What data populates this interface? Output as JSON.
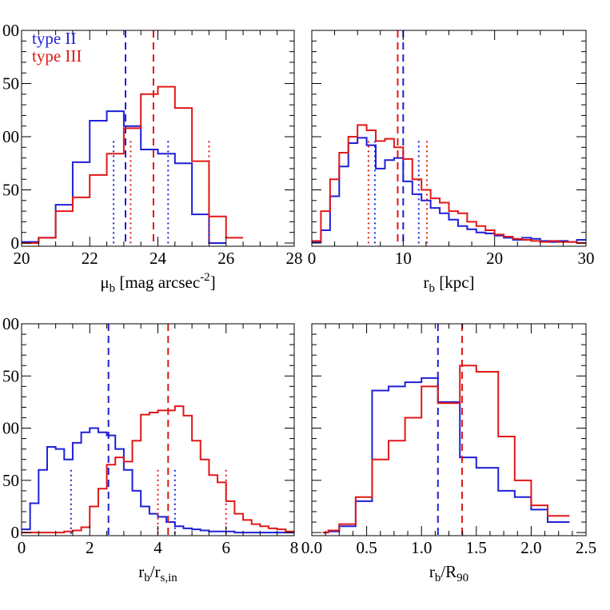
{
  "figure": {
    "colors": {
      "type_II": "#1f1fd6",
      "type_III": "#e01818",
      "axis": "#000000"
    }
  },
  "chart_data": [
    {
      "type": "histogram",
      "panel": "top-left",
      "xlabel_main": "μ",
      "xlabel_sub": "b",
      "xlabel_rest": " [mag arcsec",
      "xlabel_sup": "-2",
      "xlabel_end": "]",
      "xlim": [
        20,
        28
      ],
      "ylim": [
        -3,
        200
      ],
      "xticks": [
        "20",
        "22",
        "24",
        "26",
        "28"
      ],
      "yticks": [
        "0",
        "50",
        "100",
        "150",
        "200"
      ],
      "yticks_visible": [
        "0",
        "50",
        "00",
        "50",
        "00"
      ],
      "legend": {
        "placement": "top-left",
        "entries": [
          "type II",
          "type III"
        ]
      },
      "series": [
        {
          "name": "type II",
          "color": "#1f1fd6",
          "edges": [
            20,
            20.5,
            21,
            21.5,
            22,
            22.5,
            23,
            23.5,
            24,
            24.5,
            25,
            25.5,
            26
          ],
          "counts": [
            1,
            5,
            36,
            76,
            115,
            124,
            110,
            88,
            84,
            75,
            27,
            0
          ],
          "median": 23.05,
          "quartiles": [
            22.7,
            24.3
          ],
          "marker_top": 96
        },
        {
          "name": "type III",
          "color": "#e01818",
          "edges": [
            20,
            20.5,
            21,
            21.5,
            22,
            22.5,
            23,
            23.5,
            24,
            24.5,
            25,
            25.5,
            26,
            26.5
          ],
          "counts": [
            0,
            5,
            30,
            43,
            64,
            84,
            108,
            140,
            147,
            127,
            77,
            25,
            5
          ],
          "median": 23.87,
          "quartiles": [
            23.2,
            25.5
          ],
          "marker_top": 96
        }
      ]
    },
    {
      "type": "histogram",
      "panel": "top-right",
      "xlabel_main": "r",
      "xlabel_sub": "b",
      "xlabel_rest": " [kpc]",
      "xlabel_sup": "",
      "xlabel_end": "",
      "xlim": [
        0,
        30
      ],
      "ylim": [
        -3,
        200
      ],
      "xticks": [
        "0",
        "10",
        "20",
        "30"
      ],
      "yticks": [],
      "series": [
        {
          "name": "type II",
          "color": "#1f1fd6",
          "edges": [
            0,
            1,
            2,
            3,
            4,
            5,
            6,
            7,
            8,
            9,
            10,
            11,
            12,
            13,
            14,
            15,
            16,
            17,
            18,
            19,
            20,
            21,
            22,
            23,
            24,
            25,
            26,
            27,
            28,
            29,
            30
          ],
          "counts": [
            1,
            12,
            44,
            72,
            94,
            99,
            92,
            70,
            78,
            80,
            58,
            46,
            40,
            33,
            28,
            22,
            16,
            13,
            10,
            9,
            7,
            5,
            3,
            5,
            4,
            2,
            1,
            2,
            1,
            3
          ],
          "median": 10.0,
          "quartiles": [
            6.9,
            11.7
          ],
          "marker_top": 96
        },
        {
          "name": "type III",
          "color": "#e01818",
          "edges": [
            0,
            1,
            2,
            3,
            4,
            5,
            6,
            7,
            8,
            9,
            10,
            11,
            12,
            13,
            14,
            15,
            16,
            17,
            18,
            19,
            20,
            21,
            22,
            23,
            24,
            25,
            26,
            27,
            28,
            29,
            30
          ],
          "counts": [
            2,
            30,
            60,
            85,
            100,
            111,
            106,
            96,
            98,
            90,
            79,
            60,
            50,
            42,
            38,
            30,
            28,
            20,
            16,
            12,
            8,
            6,
            4,
            3,
            2,
            1,
            2,
            1,
            1,
            0
          ],
          "median": 9.4,
          "quartiles": [
            6.2,
            12.6
          ],
          "marker_top": 96
        }
      ]
    },
    {
      "type": "histogram",
      "panel": "bottom-left",
      "xlabel_main": "r",
      "xlabel_sub": "b",
      "xlabel_rest": "/r",
      "xlabel_sup": "",
      "xlabel_sub2": "s,in",
      "xlabel_end": "",
      "xlim": [
        0,
        8
      ],
      "ylim": [
        -3,
        200
      ],
      "xticks": [
        "0",
        "2",
        "4",
        "6",
        "8"
      ],
      "yticks": [
        "0",
        "50",
        "100",
        "150",
        "200"
      ],
      "yticks_visible": [
        "0",
        "50",
        "00",
        "50",
        "00"
      ],
      "series": [
        {
          "name": "type II",
          "color": "#1f1fd6",
          "edges": [
            0,
            0.25,
            0.5,
            0.75,
            1,
            1.25,
            1.5,
            1.75,
            2,
            2.25,
            2.5,
            2.75,
            3,
            3.25,
            3.5,
            3.75,
            4,
            4.25,
            4.5,
            4.75,
            5,
            5.25,
            5.5,
            5.75,
            6,
            6.25,
            6.5,
            6.75,
            7,
            7.25,
            7.5,
            7.75,
            8
          ],
          "counts": [
            3,
            28,
            60,
            82,
            80,
            70,
            86,
            96,
            100,
            96,
            93,
            80,
            60,
            40,
            25,
            18,
            15,
            10,
            6,
            4,
            3,
            2,
            1,
            1,
            1,
            0,
            0,
            0,
            0,
            0,
            0,
            0
          ],
          "median": 2.55,
          "quartiles": [
            1.45,
            4.5
          ],
          "marker_top": 60
        },
        {
          "name": "type III",
          "color": "#e01818",
          "edges": [
            0,
            0.25,
            0.5,
            0.75,
            1,
            1.25,
            1.5,
            1.75,
            2,
            2.25,
            2.5,
            2.75,
            3,
            3.25,
            3.5,
            3.75,
            4,
            4.25,
            4.5,
            4.75,
            5,
            5.25,
            5.5,
            5.75,
            6,
            6.25,
            6.5,
            6.75,
            7,
            7.25,
            7.5,
            7.75,
            8
          ],
          "counts": [
            0,
            0,
            0,
            0,
            0,
            1,
            2,
            5,
            25,
            42,
            65,
            72,
            68,
            88,
            113,
            115,
            117,
            117,
            121,
            112,
            88,
            70,
            55,
            48,
            30,
            18,
            12,
            8,
            6,
            4,
            3,
            1
          ],
          "median": 4.3,
          "quartiles": [
            4.0,
            6.0
          ],
          "marker_top": 60
        }
      ]
    },
    {
      "type": "histogram",
      "panel": "bottom-right",
      "xlabel_main": "r",
      "xlabel_sub": "b",
      "xlabel_rest": "/R",
      "xlabel_sup": "",
      "xlabel_sub2": "90",
      "xlabel_end": "",
      "xlim": [
        0,
        2.5
      ],
      "ylim": [
        -3,
        200
      ],
      "xticks": [
        "0.0",
        "0.5",
        "1.0",
        "1.5",
        "2.0",
        "2.5"
      ],
      "yticks": [],
      "series": [
        {
          "name": "type II",
          "color": "#1f1fd6",
          "edges": [
            0.1,
            0.15,
            0.25,
            0.4,
            0.55,
            0.7,
            0.85,
            1.0,
            1.15,
            1.35,
            1.5,
            1.7,
            1.85,
            2.0,
            2.15,
            2.35
          ],
          "counts": [
            0,
            1,
            6,
            30,
            136,
            140,
            144,
            148,
            125,
            72,
            62,
            40,
            34,
            22,
            10
          ],
          "median": 1.15,
          "quartiles": [],
          "marker_top": 0
        },
        {
          "name": "type III",
          "color": "#e01818",
          "edges": [
            0.1,
            0.15,
            0.25,
            0.4,
            0.55,
            0.7,
            0.85,
            1.0,
            1.15,
            1.35,
            1.5,
            1.7,
            1.85,
            2.0,
            2.15,
            2.35
          ],
          "counts": [
            0,
            2,
            8,
            34,
            70,
            88,
            110,
            140,
            124,
            160,
            154,
            92,
            50,
            26,
            16
          ],
          "median": 1.37,
          "quartiles": [],
          "marker_top": 0
        }
      ]
    }
  ]
}
